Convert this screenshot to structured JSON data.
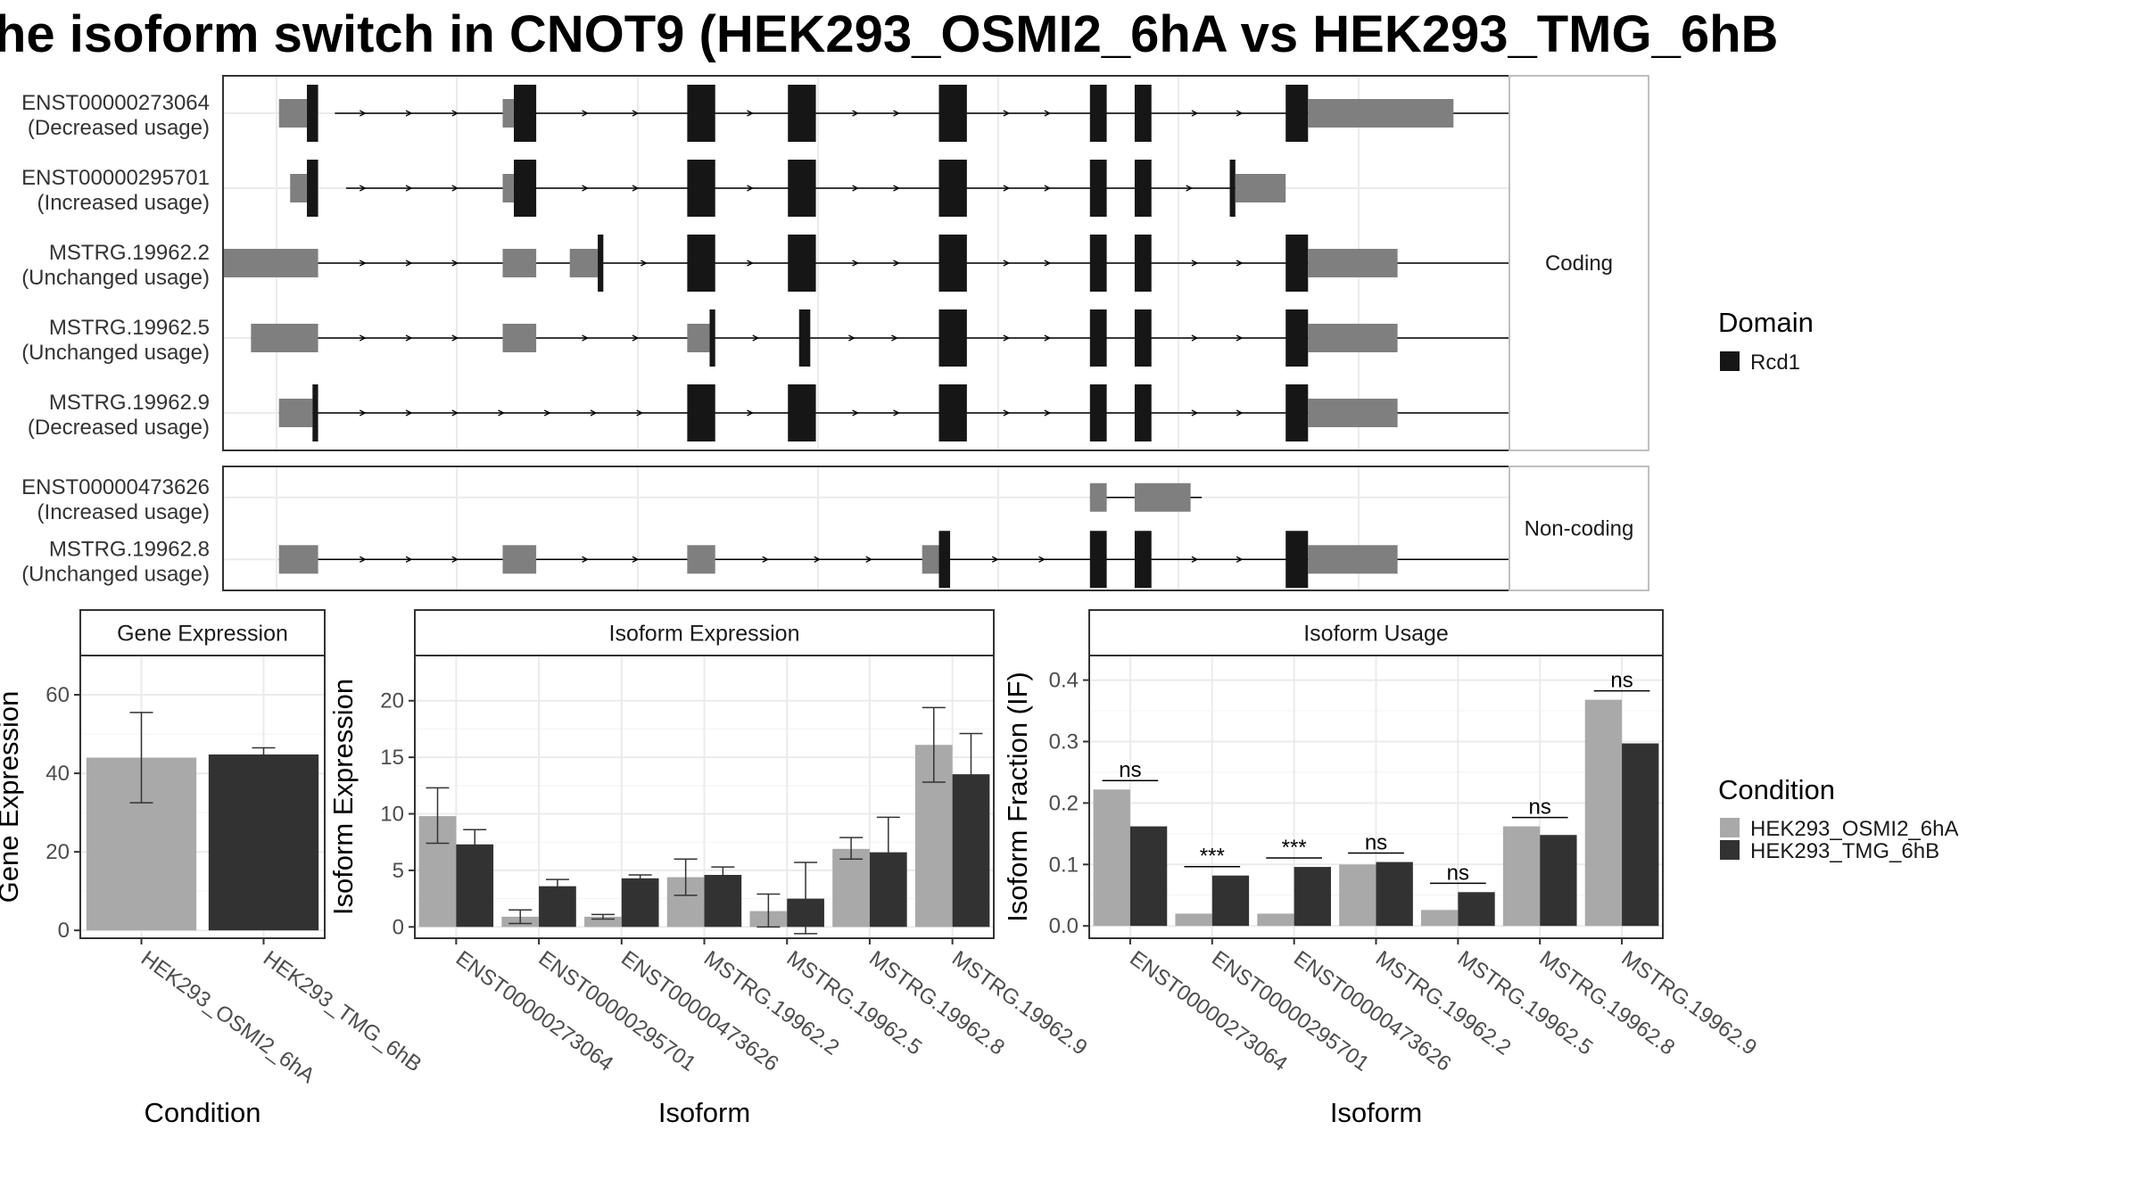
{
  "title": "he isoform switch in CNOT9 (HEK293_OSMI2_6hA vs HEK293_TMG_6hB",
  "colors": {
    "cond_a": "#a9a9a9",
    "cond_b": "#323232",
    "domain": "#161616",
    "utr": "#7f7f7f",
    "panel_border": "#333333",
    "strip_fill": "#ffffff",
    "grid": "#ebebeb"
  },
  "legend_domain": {
    "title": "Domain",
    "items": [
      {
        "label": "Rcd1",
        "color": "#161616"
      }
    ]
  },
  "legend_condition": {
    "title": "Condition",
    "items": [
      {
        "label": "HEK293_OSMI2_6hA",
        "color": "#a9a9a9"
      },
      {
        "label": "HEK293_TMG_6hB",
        "color": "#323232"
      }
    ]
  },
  "chart_data": [
    {
      "type": "gene-structure",
      "facets": [
        {
          "label": "Coding",
          "transcripts": [
            {
              "id": "ENST00000273064",
              "usage": "(Decreased usage)",
              "line": [
                10,
                238
              ],
              "exons": [
                {
                  "s": 0,
                  "e": 5,
                  "kind": "utr"
                },
                {
                  "s": 5,
                  "e": 7,
                  "kind": "cds"
                },
                {
                  "s": 40,
                  "e": 42,
                  "kind": "utr"
                },
                {
                  "s": 42,
                  "e": 46,
                  "kind": "cds"
                },
                {
                  "s": 73,
                  "e": 78,
                  "kind": "cds"
                },
                {
                  "s": 91,
                  "e": 96,
                  "kind": "cds"
                },
                {
                  "s": 118,
                  "e": 123,
                  "kind": "cds"
                },
                {
                  "s": 145,
                  "e": 148,
                  "kind": "cds"
                },
                {
                  "s": 153,
                  "e": 156,
                  "kind": "cds"
                },
                {
                  "s": 180,
                  "e": 184,
                  "kind": "cds"
                },
                {
                  "s": 184,
                  "e": 210,
                  "kind": "utr"
                }
              ]
            },
            {
              "id": "ENST00000295701",
              "usage": "(Increased usage)",
              "line": [
                12,
                177
              ],
              "exons": [
                {
                  "s": 2,
                  "e": 5,
                  "kind": "utr"
                },
                {
                  "s": 5,
                  "e": 7,
                  "kind": "cds"
                },
                {
                  "s": 40,
                  "e": 42,
                  "kind": "utr"
                },
                {
                  "s": 42,
                  "e": 46,
                  "kind": "cds"
                },
                {
                  "s": 73,
                  "e": 78,
                  "kind": "cds"
                },
                {
                  "s": 91,
                  "e": 96,
                  "kind": "cds"
                },
                {
                  "s": 118,
                  "e": 123,
                  "kind": "cds"
                },
                {
                  "s": 145,
                  "e": 148,
                  "kind": "cds"
                },
                {
                  "s": 153,
                  "e": 156,
                  "kind": "cds"
                },
                {
                  "s": 170,
                  "e": 171,
                  "kind": "cds"
                },
                {
                  "s": 171,
                  "e": 180,
                  "kind": "utr"
                }
              ]
            },
            {
              "id": "MSTRG.19962.2",
              "usage": "(Unchanged usage)",
              "line": [
                -10,
                238
              ],
              "exons": [
                {
                  "s": -10,
                  "e": 7,
                  "kind": "utr"
                },
                {
                  "s": 40,
                  "e": 46,
                  "kind": "utr"
                },
                {
                  "s": 52,
                  "e": 57,
                  "kind": "utr"
                },
                {
                  "s": 57,
                  "e": 58,
                  "kind": "cds"
                },
                {
                  "s": 73,
                  "e": 78,
                  "kind": "cds"
                },
                {
                  "s": 91,
                  "e": 96,
                  "kind": "cds"
                },
                {
                  "s": 118,
                  "e": 123,
                  "kind": "cds"
                },
                {
                  "s": 145,
                  "e": 148,
                  "kind": "cds"
                },
                {
                  "s": 153,
                  "e": 156,
                  "kind": "cds"
                },
                {
                  "s": 180,
                  "e": 184,
                  "kind": "cds"
                },
                {
                  "s": 184,
                  "e": 200,
                  "kind": "utr"
                }
              ]
            },
            {
              "id": "MSTRG.19962.5",
              "usage": "(Unchanged usage)",
              "line": [
                -5,
                238
              ],
              "exons": [
                {
                  "s": -5,
                  "e": 7,
                  "kind": "utr"
                },
                {
                  "s": 40,
                  "e": 46,
                  "kind": "utr"
                },
                {
                  "s": 73,
                  "e": 77,
                  "kind": "utr"
                },
                {
                  "s": 77,
                  "e": 78,
                  "kind": "cds"
                },
                {
                  "s": 93,
                  "e": 95,
                  "kind": "cds"
                },
                {
                  "s": 118,
                  "e": 123,
                  "kind": "cds"
                },
                {
                  "s": 145,
                  "e": 148,
                  "kind": "cds"
                },
                {
                  "s": 153,
                  "e": 156,
                  "kind": "cds"
                },
                {
                  "s": 180,
                  "e": 184,
                  "kind": "cds"
                },
                {
                  "s": 184,
                  "e": 200,
                  "kind": "utr"
                }
              ]
            },
            {
              "id": "MSTRG.19962.9",
              "usage": "(Decreased usage)",
              "line": [
                0,
                238
              ],
              "exons": [
                {
                  "s": 0,
                  "e": 6,
                  "kind": "utr"
                },
                {
                  "s": 6,
                  "e": 7,
                  "kind": "cds"
                },
                {
                  "s": 73,
                  "e": 78,
                  "kind": "cds"
                },
                {
                  "s": 91,
                  "e": 96,
                  "kind": "cds"
                },
                {
                  "s": 118,
                  "e": 123,
                  "kind": "cds"
                },
                {
                  "s": 145,
                  "e": 148,
                  "kind": "cds"
                },
                {
                  "s": 153,
                  "e": 156,
                  "kind": "cds"
                },
                {
                  "s": 180,
                  "e": 184,
                  "kind": "cds"
                },
                {
                  "s": 184,
                  "e": 200,
                  "kind": "utr"
                }
              ]
            }
          ]
        },
        {
          "label": "Non-coding",
          "transcripts": [
            {
              "id": "ENST00000473626",
              "usage": "(Increased usage)",
              "line": [
                145,
                165
              ],
              "exons": [
                {
                  "s": 145,
                  "e": 148,
                  "kind": "utr"
                },
                {
                  "s": 153,
                  "e": 163,
                  "kind": "utr"
                }
              ]
            },
            {
              "id": "MSTRG.19962.8",
              "usage": "(Unchanged usage)",
              "line": [
                0,
                238
              ],
              "exons": [
                {
                  "s": 0,
                  "e": 7,
                  "kind": "utr"
                },
                {
                  "s": 40,
                  "e": 46,
                  "kind": "utr"
                },
                {
                  "s": 73,
                  "e": 78,
                  "kind": "utr"
                },
                {
                  "s": 115,
                  "e": 118,
                  "kind": "utr"
                },
                {
                  "s": 118,
                  "e": 120,
                  "kind": "cds"
                },
                {
                  "s": 145,
                  "e": 148,
                  "kind": "cds"
                },
                {
                  "s": 153,
                  "e": 156,
                  "kind": "cds"
                },
                {
                  "s": 180,
                  "e": 184,
                  "kind": "cds"
                },
                {
                  "s": 184,
                  "e": 200,
                  "kind": "utr"
                }
              ]
            }
          ]
        }
      ],
      "xlim": [
        -10,
        220
      ]
    },
    {
      "type": "bar",
      "strip": "Gene Expression",
      "ylabel": "Gene Expression",
      "xlabel": "Condition",
      "categories": [
        "HEK293_OSMI2_6hA",
        "HEK293_TMG_6hB"
      ],
      "values": [
        44,
        44.8
      ],
      "errors": [
        [
          32.5,
          55.5
        ],
        [
          43.5,
          46.5
        ]
      ],
      "ylim": [
        -2,
        70
      ],
      "yticks": [
        0,
        20,
        40,
        60
      ]
    },
    {
      "type": "bar",
      "strip": "Isoform Expression",
      "ylabel": "Isoform Expression",
      "xlabel": "Isoform",
      "categories": [
        "ENST00000273064",
        "ENST00000295701",
        "ENST00000473626",
        "MSTRG.19962.2",
        "MSTRG.19962.5",
        "MSTRG.19962.8",
        "MSTRG.19962.9"
      ],
      "series": [
        {
          "name": "HEK293_OSMI2_6hA",
          "values": [
            9.8,
            0.9,
            0.9,
            4.4,
            1.4,
            6.9,
            16.1
          ],
          "errors": [
            [
              7.4,
              12.3
            ],
            [
              0.3,
              1.5
            ],
            [
              0.7,
              1.1
            ],
            [
              2.8,
              6.0
            ],
            [
              0.0,
              2.9
            ],
            [
              6.0,
              7.9
            ],
            [
              12.8,
              19.4
            ]
          ]
        },
        {
          "name": "HEK293_TMG_6hB",
          "values": [
            7.3,
            3.6,
            4.3,
            4.6,
            2.5,
            6.6,
            13.5
          ],
          "errors": [
            [
              6.0,
              8.6
            ],
            [
              3.0,
              4.2
            ],
            [
              4.0,
              4.6
            ],
            [
              3.9,
              5.3
            ],
            [
              -0.6,
              5.7
            ],
            [
              3.4,
              9.7
            ],
            [
              9.8,
              17.1
            ]
          ]
        }
      ],
      "ylim": [
        -1,
        24
      ],
      "yticks": [
        0,
        5,
        10,
        15,
        20
      ]
    },
    {
      "type": "bar",
      "strip": "Isoform Usage",
      "ylabel": "Isoform Fraction (IF)",
      "xlabel": "Isoform",
      "categories": [
        "ENST00000273064",
        "ENST00000295701",
        "ENST00000473626",
        "MSTRG.19962.2",
        "MSTRG.19962.5",
        "MSTRG.19962.8",
        "MSTRG.19962.9"
      ],
      "series": [
        {
          "name": "HEK293_OSMI2_6hA",
          "values": [
            0.222,
            0.02,
            0.02,
            0.1,
            0.026,
            0.162,
            0.368
          ]
        },
        {
          "name": "HEK293_TMG_6hB",
          "values": [
            0.162,
            0.082,
            0.096,
            0.104,
            0.055,
            0.148,
            0.297
          ]
        }
      ],
      "significance": [
        "ns",
        "***",
        "***",
        "ns",
        "ns",
        "ns",
        "ns"
      ],
      "ylim": [
        -0.02,
        0.44
      ],
      "yticks": [
        0.0,
        0.1,
        0.2,
        0.3,
        0.4
      ],
      "ytick_labels": [
        "0.0",
        "0.1",
        "0.2",
        "0.3",
        "0.4"
      ]
    }
  ]
}
